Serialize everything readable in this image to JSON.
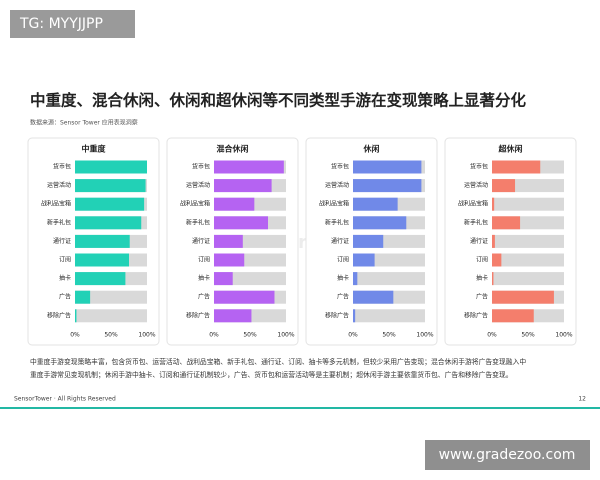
{
  "watermark_top": "TG: MYYJJPP",
  "title": "中重度、混合休闲、休闲和超休闲等不同类型手游在变现策略上显著分化",
  "source": "数据来源：Sensor Tower 应用表现洞察",
  "center_watermark": "Sensor Tower",
  "chart_data": [
    {
      "type": "hbar",
      "title": "中重度",
      "color": "#22d1b6",
      "categories": [
        "货币包",
        "运营活动",
        "战利品宝箱",
        "新手礼包",
        "通行证",
        "订阅",
        "抽卡",
        "广告",
        "移除广告"
      ],
      "values": [
        100,
        98,
        96,
        92,
        76,
        75,
        70,
        21,
        2
      ],
      "xlim": [
        0,
        100
      ],
      "xticks": [
        {
          "value": 0,
          "label": "0%"
        },
        {
          "value": 50,
          "label": "50%"
        },
        {
          "value": 100,
          "label": "100%"
        }
      ]
    },
    {
      "type": "hbar",
      "title": "混合休闲",
      "color": "#b563f2",
      "categories": [
        "货币包",
        "运营活动",
        "战利品宝箱",
        "新手礼包",
        "通行证",
        "订阅",
        "抽卡",
        "广告",
        "移除广告"
      ],
      "values": [
        97,
        80,
        56,
        75,
        40,
        42,
        26,
        84,
        52
      ],
      "xlim": [
        0,
        100
      ],
      "xticks": [
        {
          "value": 0,
          "label": "0%"
        },
        {
          "value": 50,
          "label": "50%"
        },
        {
          "value": 100,
          "label": "100%"
        }
      ]
    },
    {
      "type": "hbar",
      "title": "休闲",
      "color": "#7089e8",
      "categories": [
        "货币包",
        "运营活动",
        "战利品宝箱",
        "新手礼包",
        "通行证",
        "订阅",
        "抽卡",
        "广告",
        "移除广告"
      ],
      "values": [
        95,
        95,
        62,
        74,
        42,
        30,
        6,
        56,
        3
      ],
      "xlim": [
        0,
        100
      ],
      "xticks": [
        {
          "value": 0,
          "label": "0%"
        },
        {
          "value": 50,
          "label": "50%"
        },
        {
          "value": 100,
          "label": "100%"
        }
      ]
    },
    {
      "type": "hbar",
      "title": "超休闲",
      "color": "#f47e6c",
      "categories": [
        "货币包",
        "运营活动",
        "战利品宝箱",
        "新手礼包",
        "通行证",
        "订阅",
        "抽卡",
        "广告",
        "移除广告"
      ],
      "values": [
        67,
        32,
        3,
        39,
        4,
        13,
        2,
        86,
        58
      ],
      "xlim": [
        0,
        100
      ],
      "xticks": [
        {
          "value": 0,
          "label": "0%"
        },
        {
          "value": 50,
          "label": "50%"
        },
        {
          "value": 100,
          "label": "100%"
        }
      ]
    }
  ],
  "footnote": [
    "中重度手游变现策略丰富，包含货币包、运营活动、战利品宝箱、新手礼包、通行证、订阅、抽卡等多元机制，但较少采用广告变现；混合休闲手游将广告变现融入中",
    "重度手游常见变现机制；休闲手游中抽卡、订阅和通行证机制较少，广告、货币包和运营活动等是主要机制；超休闲手游主要依靠货币包、广告和移除广告变现。"
  ],
  "footer": "SensorTower · All Rights Reserved",
  "page_number": "12",
  "watermark_bottom": "www.gradezoo.com"
}
